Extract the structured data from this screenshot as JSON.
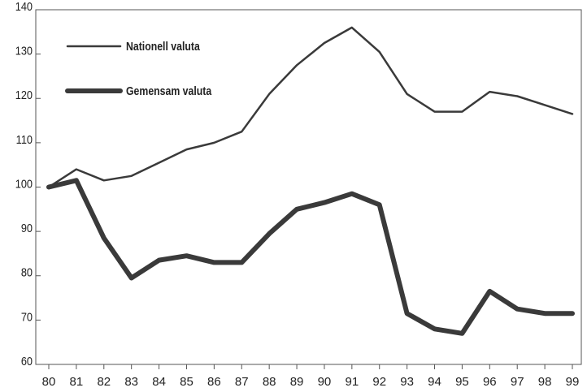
{
  "chart_data": {
    "type": "line",
    "x": [
      "80",
      "81",
      "82",
      "83",
      "84",
      "85",
      "86",
      "87",
      "88",
      "89",
      "90",
      "91",
      "92",
      "93",
      "94",
      "95",
      "96",
      "97",
      "98",
      "99"
    ],
    "series": [
      {
        "name": "Nationell valuta",
        "color": "#3a3a3a",
        "values": [
          100,
          104,
          101.5,
          102.5,
          105.5,
          108.5,
          110,
          112.5,
          121,
          127.5,
          132.5,
          136,
          130.5,
          121,
          117,
          117,
          121.5,
          120.5,
          118.5,
          116.5
        ]
      },
      {
        "name": "Gemensam valuta",
        "color": "#3a3a3a",
        "values": [
          100,
          101.5,
          88.5,
          79.5,
          83.5,
          84.5,
          83,
          83,
          89.5,
          95,
          96.5,
          98.5,
          96,
          71.5,
          68,
          67,
          76.5,
          72.5,
          71.5,
          71.5
        ]
      }
    ],
    "yticks": [
      "60",
      "70",
      "80",
      "90",
      "100",
      "110",
      "120",
      "130",
      "140"
    ],
    "ylim": [
      60,
      140
    ],
    "grid": false,
    "legend_position": "top-left"
  }
}
